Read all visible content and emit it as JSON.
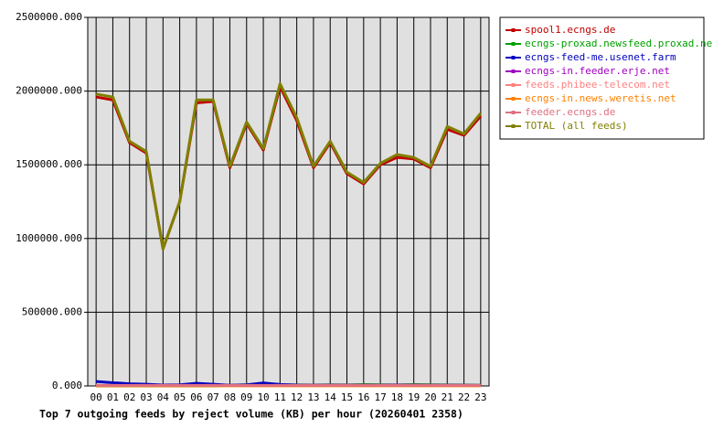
{
  "chart_data": {
    "type": "line",
    "title": "Top 7 outgoing feeds by reject volume (KB) per hour (20260401 2358)",
    "categories": [
      "00",
      "01",
      "02",
      "03",
      "04",
      "05",
      "06",
      "07",
      "08",
      "09",
      "10",
      "11",
      "12",
      "13",
      "14",
      "15",
      "16",
      "17",
      "18",
      "19",
      "20",
      "21",
      "22",
      "23"
    ],
    "ylim": [
      0,
      2500000
    ],
    "yticks": [
      {
        "value": 0,
        "label": "0.000"
      },
      {
        "value": 500000,
        "label": "500000.000"
      },
      {
        "value": 1000000,
        "label": "1000000.000"
      },
      {
        "value": 1500000,
        "label": "1500000.000"
      },
      {
        "value": 2000000,
        "label": "2000000.000"
      },
      {
        "value": 2500000,
        "label": "2500000.000"
      }
    ],
    "grid": true,
    "series": [
      {
        "name": "spool1.ecngs.de",
        "color": "#c00000",
        "values": [
          1960000,
          1940000,
          1650000,
          1580000,
          930000,
          1250000,
          1920000,
          1930000,
          1480000,
          1780000,
          1600000,
          2030000,
          1800000,
          1480000,
          1650000,
          1440000,
          1370000,
          1500000,
          1550000,
          1540000,
          1480000,
          1740000,
          1700000,
          1830000
        ]
      },
      {
        "name": "ecngs-proxad.newsfeed.proxad.net",
        "color": "#00a000",
        "values": [
          0,
          0,
          0,
          0,
          0,
          0,
          0,
          0,
          5000,
          8000,
          6000,
          8000,
          7000,
          6000,
          8000,
          7000,
          9000,
          8000,
          7000,
          9000,
          8000,
          7000,
          6000,
          5000
        ]
      },
      {
        "name": "ecngs-feed-me.usenet.farm",
        "color": "#0000c0",
        "values": [
          30000,
          22000,
          15000,
          12000,
          6000,
          8000,
          18000,
          12000,
          5000,
          8000,
          20000,
          10000,
          6000,
          5000,
          5000,
          5000,
          5000,
          5000,
          6000,
          5000,
          5000,
          5000,
          5000,
          4000
        ]
      },
      {
        "name": "ecngs-in.feeder.erje.net",
        "color": "#a000c0",
        "values": [
          3000,
          3000,
          3000,
          3000,
          2000,
          2000,
          3000,
          3000,
          3000,
          3000,
          3000,
          3000,
          3000,
          4000,
          5000,
          5000,
          4000,
          4000,
          5000,
          5000,
          4000,
          4000,
          3000,
          3000
        ]
      },
      {
        "name": "feeds.phibee-telecom.net",
        "color": "#ff8080",
        "values": [
          2000,
          2000,
          2000,
          2000,
          2000,
          2000,
          2000,
          2000,
          2000,
          2000,
          2000,
          2000,
          2000,
          2000,
          2000,
          2000,
          2000,
          2000,
          2000,
          2000,
          2000,
          2000,
          2000,
          2000
        ]
      },
      {
        "name": "ecngs-in.news.weretis.net",
        "color": "#ff8000",
        "values": [
          1000,
          1000,
          1000,
          1000,
          1000,
          1000,
          1000,
          1000,
          1000,
          1000,
          1000,
          1000,
          1000,
          1000,
          1000,
          1000,
          1000,
          1000,
          1000,
          1000,
          1000,
          1000,
          1000,
          1000
        ]
      },
      {
        "name": "feeder.ecngs.de",
        "color": "#e07080",
        "values": [
          4000,
          4000,
          4000,
          4000,
          4000,
          4000,
          4000,
          4000,
          4000,
          4000,
          4000,
          4000,
          4000,
          4000,
          4000,
          4000,
          4000,
          4000,
          4000,
          4000,
          4000,
          4000,
          4000,
          4000
        ]
      },
      {
        "name": "TOTAL (all feeds)",
        "color": "#808000",
        "values": [
          1980000,
          1960000,
          1660000,
          1590000,
          930000,
          1250000,
          1940000,
          1940000,
          1490000,
          1790000,
          1610000,
          2050000,
          1820000,
          1490000,
          1660000,
          1450000,
          1380000,
          1510000,
          1570000,
          1550000,
          1490000,
          1760000,
          1710000,
          1850000
        ]
      }
    ]
  }
}
